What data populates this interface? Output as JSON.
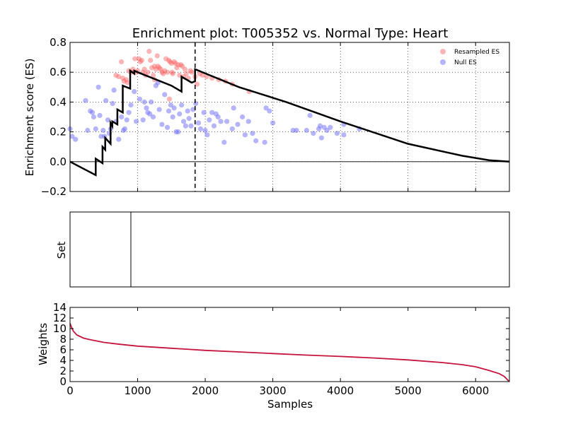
{
  "chart_data": [
    {
      "type": "scatter",
      "title": "Enrichment plot: T005352 vs. Normal Type: Heart",
      "ylabel": "Enrichment score (ES)",
      "xlabel": "",
      "xlim": [
        0,
        6500
      ],
      "ylim": [
        -0.2,
        0.8
      ],
      "yticks": [
        -0.2,
        0.0,
        0.2,
        0.4,
        0.6,
        0.8
      ],
      "ytick_labels": [
        "−0.2",
        "0.0",
        "0.2",
        "0.4",
        "0.6",
        "0.8"
      ],
      "xticks": [
        1000,
        2000,
        3000,
        4000,
        5000,
        6000
      ],
      "grid": true,
      "legend_position": "top-right",
      "vline_x": 1850,
      "hline_y": 0,
      "running_es": {
        "x": [
          0,
          380,
          380,
          480,
          480,
          520,
          520,
          600,
          600,
          625,
          625,
          700,
          700,
          780,
          780,
          890,
          890,
          950,
          950,
          1000,
          1500,
          1650,
          1650,
          1800,
          1850,
          1850,
          2500,
          3200,
          4000,
          5000,
          5800,
          6200,
          6500
        ],
        "y": [
          0.0,
          -0.09,
          0.02,
          -0.01,
          0.1,
          0.08,
          0.16,
          0.12,
          0.26,
          0.24,
          0.27,
          0.25,
          0.35,
          0.33,
          0.51,
          0.49,
          0.61,
          0.59,
          0.61,
          0.6,
          0.51,
          0.47,
          0.57,
          0.53,
          0.54,
          0.62,
          0.5,
          0.4,
          0.27,
          0.12,
          0.04,
          0.01,
          0.0
        ],
        "color": "#000000"
      },
      "series": [
        {
          "name": "Resampled ES",
          "color": "#ff5a5a",
          "points": [
            [
              680,
              0.58
            ],
            [
              720,
              0.57
            ],
            [
              760,
              0.67
            ],
            [
              780,
              0.56
            ],
            [
              800,
              0.54
            ],
            [
              830,
              0.55
            ],
            [
              850,
              0.53
            ],
            [
              870,
              0.61
            ],
            [
              900,
              0.6
            ],
            [
              930,
              0.62
            ],
            [
              960,
              0.69
            ],
            [
              980,
              0.6
            ],
            [
              1000,
              0.61
            ],
            [
              1020,
              0.69
            ],
            [
              1040,
              0.67
            ],
            [
              1060,
              0.68
            ],
            [
              1080,
              0.6
            ],
            [
              1100,
              0.62
            ],
            [
              1120,
              0.58
            ],
            [
              1150,
              0.6
            ],
            [
              1170,
              0.74
            ],
            [
              1190,
              0.68
            ],
            [
              1210,
              0.63
            ],
            [
              1230,
              0.58
            ],
            [
              1250,
              0.64
            ],
            [
              1270,
              0.62
            ],
            [
              1290,
              0.71
            ],
            [
              1300,
              0.64
            ],
            [
              1320,
              0.63
            ],
            [
              1340,
              0.62
            ],
            [
              1360,
              0.6
            ],
            [
              1380,
              0.59
            ],
            [
              1400,
              0.61
            ],
            [
              1420,
              0.69
            ],
            [
              1440,
              0.6
            ],
            [
              1460,
              0.68
            ],
            [
              1480,
              0.67
            ],
            [
              1500,
              0.66
            ],
            [
              1510,
              0.6
            ],
            [
              1520,
              0.59
            ],
            [
              1540,
              0.67
            ],
            [
              1560,
              0.66
            ],
            [
              1580,
              0.63
            ],
            [
              1600,
              0.65
            ],
            [
              1620,
              0.58
            ],
            [
              1640,
              0.65
            ],
            [
              1660,
              0.64
            ],
            [
              1680,
              0.57
            ],
            [
              1700,
              0.62
            ],
            [
              1720,
              0.59
            ],
            [
              1750,
              0.56
            ],
            [
              1780,
              0.61
            ],
            [
              1800,
              0.6
            ],
            [
              1850,
              0.57
            ],
            [
              1880,
              0.52
            ],
            [
              1920,
              0.59
            ],
            [
              1960,
              0.58
            ],
            [
              2020,
              0.57
            ],
            [
              2100,
              0.56
            ],
            [
              2200,
              0.55
            ],
            [
              2300,
              0.54
            ],
            [
              2400,
              0.52
            ],
            [
              2650,
              0.47
            ],
            [
              1470,
              0.42
            ],
            [
              1250,
              0.55
            ]
          ]
        },
        {
          "name": "Null ES",
          "color": "#6b6bff",
          "points": [
            [
              0,
              0.22
            ],
            [
              30,
              0.17
            ],
            [
              80,
              0.15
            ],
            [
              230,
              0.41
            ],
            [
              260,
              0.21
            ],
            [
              300,
              0.34
            ],
            [
              330,
              0.33
            ],
            [
              350,
              0.3
            ],
            [
              380,
              0.22
            ],
            [
              420,
              0.5
            ],
            [
              440,
              0.31
            ],
            [
              460,
              0.17
            ],
            [
              490,
              0.21
            ],
            [
              510,
              0.17
            ],
            [
              530,
              0.41
            ],
            [
              560,
              0.28
            ],
            [
              580,
              0.19
            ],
            [
              600,
              0.22
            ],
            [
              630,
              0.39
            ],
            [
              650,
              0.48
            ],
            [
              680,
              0.27
            ],
            [
              720,
              0.15
            ],
            [
              760,
              0.3
            ],
            [
              790,
              0.21
            ],
            [
              810,
              0.22
            ],
            [
              840,
              0.28
            ],
            [
              870,
              0.33
            ],
            [
              900,
              0.38
            ],
            [
              950,
              0.47
            ],
            [
              980,
              0.27
            ],
            [
              1030,
              0.42
            ],
            [
              1080,
              0.28
            ],
            [
              1100,
              0.4
            ],
            [
              1130,
              0.36
            ],
            [
              1150,
              0.33
            ],
            [
              1180,
              0.32
            ],
            [
              1200,
              0.4
            ],
            [
              1230,
              0.3
            ],
            [
              1270,
              0.51
            ],
            [
              1300,
              0.53
            ],
            [
              1320,
              0.35
            ],
            [
              1360,
              0.25
            ],
            [
              1400,
              0.45
            ],
            [
              1440,
              0.23
            ],
            [
              1460,
              0.34
            ],
            [
              1490,
              0.38
            ],
            [
              1520,
              0.3
            ],
            [
              1540,
              0.36
            ],
            [
              1570,
              0.2
            ],
            [
              1600,
              0.2
            ],
            [
              1620,
              0.32
            ],
            [
              1650,
              0.38
            ],
            [
              1680,
              0.27
            ],
            [
              1710,
              0.24
            ],
            [
              1740,
              0.34
            ],
            [
              1760,
              0.29
            ],
            [
              1790,
              0.24
            ],
            [
              1820,
              0.35
            ],
            [
              1860,
              0.39
            ],
            [
              1900,
              0.26
            ],
            [
              1930,
              0.22
            ],
            [
              1980,
              0.33
            ],
            [
              2000,
              0.21
            ],
            [
              2030,
              0.18
            ],
            [
              2060,
              0.28
            ],
            [
              2100,
              0.33
            ],
            [
              2130,
              0.24
            ],
            [
              2160,
              0.32
            ],
            [
              2190,
              0.3
            ],
            [
              2230,
              0.27
            ],
            [
              2280,
              0.13
            ],
            [
              2320,
              0.27
            ],
            [
              2400,
              0.22
            ],
            [
              2420,
              0.36
            ],
            [
              2480,
              0.25
            ],
            [
              2550,
              0.3
            ],
            [
              2590,
              0.18
            ],
            [
              2640,
              0.27
            ],
            [
              2700,
              0.19
            ],
            [
              2750,
              0.14
            ],
            [
              2880,
              0.13
            ],
            [
              2900,
              0.36
            ],
            [
              2950,
              0.34
            ],
            [
              3000,
              0.26
            ],
            [
              3300,
              0.21
            ],
            [
              3350,
              0.21
            ],
            [
              3500,
              0.21
            ],
            [
              3550,
              0.31
            ],
            [
              3600,
              0.19
            ],
            [
              3680,
              0.22
            ],
            [
              3700,
              0.24
            ],
            [
              3720,
              0.16
            ],
            [
              3760,
              0.23
            ],
            [
              3800,
              0.21
            ],
            [
              3850,
              0.23
            ],
            [
              3950,
              0.19
            ],
            [
              4050,
              0.25
            ],
            [
              4050,
              0.18
            ],
            [
              4280,
              0.22
            ]
          ]
        }
      ]
    },
    {
      "type": "line",
      "ylabel": "Set",
      "xlim": [
        0,
        6500
      ],
      "hits_x": [
        900
      ],
      "color": "#000000"
    },
    {
      "type": "line",
      "ylabel": "Weights",
      "xlabel": "Samples",
      "xlim": [
        0,
        6500
      ],
      "ylim": [
        0,
        14
      ],
      "xticks": [
        0,
        1000,
        2000,
        3000,
        4000,
        5000,
        6000
      ],
      "yticks": [
        0,
        2,
        4,
        6,
        8,
        10,
        12,
        14
      ],
      "color": "#c8143c",
      "x": [
        0,
        20,
        50,
        100,
        200,
        300,
        500,
        700,
        1000,
        1500,
        2000,
        2500,
        3000,
        3500,
        4000,
        4500,
        5000,
        5500,
        5800,
        6000,
        6200,
        6350,
        6420,
        6460,
        6490,
        6500
      ],
      "y": [
        11.0,
        10.3,
        9.5,
        8.8,
        8.2,
        7.9,
        7.4,
        7.1,
        6.7,
        6.3,
        5.9,
        5.6,
        5.3,
        5.0,
        4.75,
        4.45,
        4.1,
        3.6,
        3.2,
        2.8,
        2.1,
        1.5,
        1.0,
        0.5,
        0.1,
        0.0
      ]
    }
  ]
}
